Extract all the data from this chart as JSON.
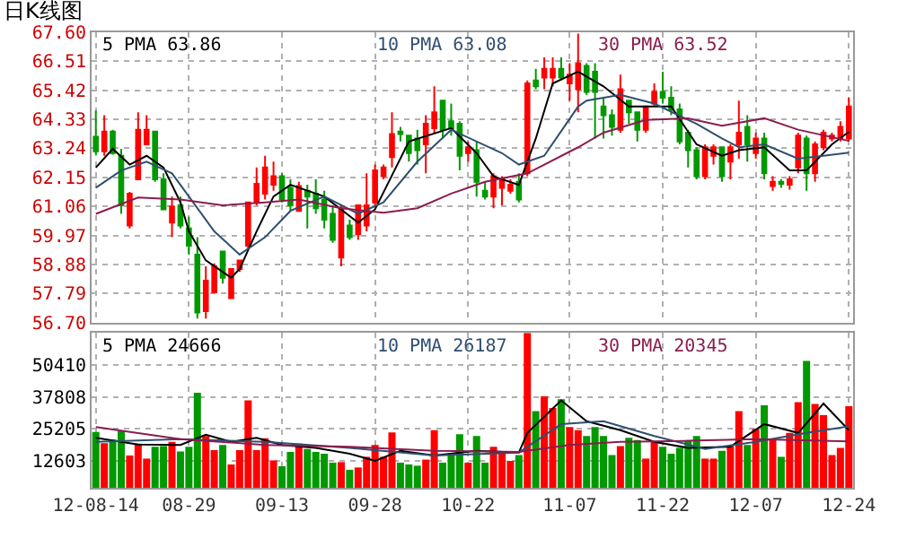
{
  "chart_data": [
    {
      "type": "candlestick",
      "title": "日K线图",
      "categories": [
        "12-08-14",
        null,
        null,
        null,
        null,
        null,
        null,
        null,
        null,
        null,
        null,
        "08-29",
        null,
        null,
        null,
        null,
        null,
        null,
        null,
        null,
        null,
        null,
        "09-13",
        null,
        null,
        null,
        null,
        null,
        null,
        null,
        null,
        null,
        null,
        "09-28",
        null,
        null,
        null,
        null,
        null,
        null,
        null,
        null,
        null,
        null,
        "10-22",
        null,
        null,
        null,
        null,
        null,
        null,
        null,
        null,
        null,
        null,
        null,
        "11-07",
        null,
        null,
        null,
        null,
        null,
        null,
        null,
        null,
        null,
        null,
        "11-22",
        null,
        null,
        null,
        null,
        null,
        null,
        null,
        null,
        null,
        null,
        "12-07",
        null,
        null,
        null,
        null,
        null,
        null,
        null,
        null,
        null,
        null,
        "12-24"
      ],
      "ohlc": [
        [
          63.68,
          64.66,
          63.0,
          63.13
        ],
        [
          63.13,
          64.48,
          62.96,
          63.87
        ],
        [
          63.87,
          63.94,
          63.0,
          63.06
        ],
        [
          62.96,
          63.22,
          60.78,
          61.1
        ],
        [
          60.34,
          61.6,
          60.23,
          61.54
        ],
        [
          62.08,
          64.59,
          62.08,
          63.94
        ],
        [
          63.39,
          64.48,
          63.39,
          63.94
        ],
        [
          63.87,
          63.87,
          61.98,
          62.08
        ],
        [
          62.08,
          62.3,
          60.95,
          60.95
        ],
        [
          60.45,
          61.43,
          59.9,
          61.06
        ],
        [
          61.1,
          61.43,
          60.23,
          60.34
        ],
        [
          60.23,
          60.67,
          59.25,
          59.58
        ],
        [
          59.25,
          59.9,
          56.85,
          57.07
        ],
        [
          57.12,
          58.81,
          56.85,
          58.27
        ],
        [
          57.83,
          58.92,
          57.83,
          58.81
        ],
        [
          59.36,
          59.36,
          58.16,
          58.38
        ],
        [
          57.61,
          58.71,
          57.61,
          58.71
        ],
        [
          58.71,
          59.03,
          58.6,
          59.03
        ],
        [
          59.58,
          61.21,
          59.47,
          61.21
        ],
        [
          61.21,
          62.52,
          61.1,
          61.91
        ],
        [
          61.54,
          62.96,
          61.32,
          62.52
        ],
        [
          61.87,
          62.74,
          61.65,
          62.19
        ],
        [
          62.19,
          62.3,
          61.21,
          61.32
        ],
        [
          61.76,
          62.08,
          60.89,
          61.1
        ],
        [
          60.89,
          61.98,
          60.89,
          61.82
        ],
        [
          61.65,
          61.87,
          60.23,
          61.43
        ],
        [
          61.54,
          62.08,
          60.78,
          60.99
        ],
        [
          61.32,
          61.65,
          60.23,
          60.56
        ],
        [
          60.78,
          61.1,
          59.69,
          59.8
        ],
        [
          59.14,
          61.1,
          58.81,
          60.99
        ],
        [
          60.34,
          60.56,
          59.8,
          59.9
        ],
        [
          60.01,
          61.1,
          59.8,
          61.1
        ],
        [
          60.34,
          62.3,
          60.12,
          61.1
        ],
        [
          61.21,
          62.63,
          61.1,
          62.41
        ],
        [
          62.19,
          62.63,
          62.08,
          62.52
        ],
        [
          62.91,
          64.59,
          62.52,
          63.78
        ],
        [
          63.87,
          64.05,
          63.5,
          63.78
        ],
        [
          63.72,
          63.72,
          62.74,
          63.06
        ],
        [
          63.61,
          63.94,
          62.63,
          63.17
        ],
        [
          63.39,
          64.48,
          62.3,
          64.16
        ],
        [
          64.0,
          65.57,
          63.83,
          64.59
        ],
        [
          65.03,
          65.03,
          63.61,
          63.94
        ],
        [
          64.26,
          64.92,
          63.72,
          64.0
        ],
        [
          64.16,
          64.26,
          62.41,
          62.96
        ],
        [
          63.06,
          63.5,
          62.74,
          63.28
        ],
        [
          63.17,
          63.5,
          61.43,
          61.98
        ],
        [
          61.65,
          61.98,
          61.32,
          61.43
        ],
        [
          61.43,
          62.3,
          60.99,
          62.19
        ],
        [
          61.76,
          62.19,
          61.1,
          62.08
        ],
        [
          61.65,
          62.08,
          61.54,
          61.87
        ],
        [
          61.98,
          62.3,
          61.21,
          61.32
        ],
        [
          62.3,
          65.79,
          62.19,
          65.68
        ],
        [
          65.79,
          66.23,
          65.46,
          65.57
        ],
        [
          65.9,
          66.66,
          65.46,
          66.23
        ],
        [
          65.9,
          66.66,
          65.57,
          66.23
        ],
        [
          66.23,
          66.66,
          65.79,
          65.9
        ],
        [
          65.68,
          66.44,
          65.03,
          66.01
        ],
        [
          65.46,
          67.55,
          64.59,
          66.44
        ],
        [
          66.34,
          66.44,
          65.25,
          65.36
        ],
        [
          66.12,
          66.44,
          63.61,
          65.36
        ],
        [
          64.81,
          65.14,
          63.61,
          64.48
        ],
        [
          64.48,
          64.7,
          63.72,
          64.05
        ],
        [
          63.94,
          66.01,
          63.83,
          65.46
        ],
        [
          65.03,
          65.03,
          64.16,
          64.59
        ],
        [
          64.59,
          64.59,
          63.5,
          63.94
        ],
        [
          63.94,
          64.81,
          63.83,
          64.81
        ],
        [
          64.92,
          65.68,
          64.81,
          65.36
        ],
        [
          65.36,
          66.12,
          64.92,
          65.14
        ],
        [
          65.14,
          65.57,
          64.48,
          64.7
        ],
        [
          64.7,
          64.92,
          63.39,
          63.5
        ],
        [
          63.83,
          63.94,
          62.52,
          63.17
        ],
        [
          63.17,
          63.28,
          62.08,
          62.19
        ],
        [
          62.19,
          63.39,
          62.08,
          63.28
        ],
        [
          62.96,
          63.39,
          62.63,
          63.28
        ],
        [
          63.28,
          63.28,
          61.98,
          62.19
        ],
        [
          62.74,
          63.39,
          62.08,
          63.28
        ],
        [
          63.39,
          65.03,
          62.85,
          63.83
        ],
        [
          64.05,
          64.48,
          62.74,
          63.39
        ],
        [
          63.06,
          63.83,
          62.85,
          63.61
        ],
        [
          63.61,
          63.83,
          62.08,
          62.3
        ],
        [
          61.82,
          62.19,
          61.65,
          61.98
        ],
        [
          61.98,
          62.08,
          61.76,
          61.91
        ],
        [
          61.87,
          62.19,
          61.69,
          62.08
        ],
        [
          62.52,
          63.83,
          62.3,
          63.72
        ],
        [
          63.61,
          63.72,
          61.65,
          62.3
        ],
        [
          62.3,
          63.5,
          61.98,
          63.39
        ],
        [
          63.28,
          63.94,
          63.17,
          63.83
        ],
        [
          63.61,
          63.83,
          63.5,
          63.72
        ],
        [
          63.61,
          64.26,
          63.5,
          64.05
        ],
        [
          63.61,
          65.14,
          63.5,
          64.81
        ]
      ],
      "colors": [
        "#009900",
        "#ff0000",
        "#009900",
        "#009900",
        "#ff0000",
        "#ff0000",
        "#ff0000",
        "#009900",
        "#009900",
        "#ff0000",
        "#009900",
        "#009900",
        "#009900",
        "#ff0000",
        "#ff0000",
        "#009900",
        "#ff0000",
        "#ff0000",
        "#ff0000",
        "#ff0000",
        "#ff0000",
        "#ff0000",
        "#009900",
        "#009900",
        "#ff0000",
        "#009900",
        "#009900",
        "#009900",
        "#009900",
        "#ff0000",
        "#009900",
        "#ff0000",
        "#ff0000",
        "#ff0000",
        "#ff0000",
        "#ff0000",
        "#009900",
        "#009900",
        "#009900",
        "#ff0000",
        "#ff0000",
        "#009900",
        "#009900",
        "#009900",
        "#ff0000",
        "#009900",
        "#009900",
        "#ff0000",
        "#ff0000",
        "#ff0000",
        "#009900",
        "#ff0000",
        "#009900",
        "#ff0000",
        "#ff0000",
        "#009900",
        "#ff0000",
        "#ff0000",
        "#009900",
        "#009900",
        "#009900",
        "#009900",
        "#ff0000",
        "#009900",
        "#009900",
        "#ff0000",
        "#ff0000",
        "#009900",
        "#009900",
        "#009900",
        "#009900",
        "#009900",
        "#ff0000",
        "#ff0000",
        "#009900",
        "#ff0000",
        "#ff0000",
        "#009900",
        "#ff0000",
        "#009900",
        "#ff0000",
        "#009900",
        "#ff0000",
        "#ff0000",
        "#009900",
        "#ff0000",
        "#ff0000",
        "#ff0000",
        "#ff0000",
        "#ff0000"
      ],
      "ylim": [
        56.7,
        67.6
      ],
      "yticks": [
        {
          "value": 56.7,
          "label": "56.70"
        },
        57.79,
        58.88,
        59.97,
        61.06,
        62.15,
        63.24,
        64.33,
        65.42,
        66.51,
        {
          "value": 67.6,
          "label": "67.60"
        }
      ],
      "grid": true,
      "tick_labels": "y",
      "series": [
        {
          "type": "line",
          "name": "5 PMA 63.86",
          "color": "#000000",
          "values": [
            62.52,
            null,
            63.22,
            null,
            62.63,
            null,
            62.96,
            null,
            62.52,
            null,
            61.21,
            60.12,
            null,
            59.03,
            null,
            null,
            58.38,
            58.71,
            null,
            60.12,
            null,
            61.43,
            null,
            61.87,
            null,
            null,
            null,
            61.43,
            null,
            null,
            null,
            60.45,
            null,
            60.95,
            null,
            null,
            null,
            63.5,
            null,
            null,
            null,
            null,
            64.0,
            null,
            null,
            63.06,
            null,
            62.19,
            null,
            null,
            61.87,
            null,
            63.61,
            null,
            65.68,
            null,
            null,
            66.12,
            null,
            null,
            65.57,
            null,
            null,
            64.81,
            null,
            null,
            64.81,
            null,
            64.81,
            null,
            null,
            63.39,
            null,
            null,
            62.96,
            null,
            63.17,
            null,
            null,
            63.28,
            null,
            null,
            62.41,
            null,
            62.41,
            null,
            null,
            63.39,
            null,
            63.86
          ]
        },
        {
          "type": "line",
          "name": "10 PMA 63.08",
          "color": "#2f4f6f",
          "values": [
            61.76,
            null,
            null,
            62.41,
            null,
            null,
            62.74,
            null,
            null,
            62.3,
            null,
            61.43,
            null,
            null,
            60.12,
            null,
            null,
            59.25,
            null,
            null,
            59.9,
            null,
            null,
            60.89,
            null,
            null,
            null,
            61.43,
            null,
            null,
            null,
            60.78,
            null,
            null,
            61.21,
            null,
            null,
            null,
            62.74,
            null,
            null,
            null,
            63.94,
            null,
            null,
            null,
            null,
            null,
            63.06,
            null,
            62.63,
            null,
            null,
            62.96,
            null,
            null,
            null,
            64.81,
            65.03,
            null,
            null,
            null,
            65.25,
            null,
            null,
            null,
            64.92,
            null,
            null,
            null,
            null,
            64.16,
            null,
            null,
            63.61,
            null,
            63.28,
            null,
            null,
            63.39,
            null,
            null,
            null,
            62.85,
            null,
            null,
            62.96,
            null,
            null,
            63.08
          ]
        },
        {
          "type": "line",
          "name": "30 PMA 63.52",
          "color": "#8b1c4f",
          "values": [
            60.78,
            null,
            null,
            null,
            null,
            61.39,
            null,
            null,
            null,
            null,
            61.32,
            null,
            null,
            null,
            null,
            61.1,
            null,
            null,
            null,
            null,
            61.21,
            null,
            null,
            null,
            61.32,
            null,
            null,
            null,
            null,
            60.99,
            null,
            null,
            null,
            null,
            60.82,
            null,
            null,
            null,
            60.99,
            null,
            null,
            null,
            61.54,
            null,
            null,
            null,
            61.98,
            null,
            null,
            null,
            null,
            62.3,
            null,
            null,
            null,
            null,
            null,
            63.28,
            null,
            null,
            63.83,
            null,
            null,
            null,
            null,
            64.31,
            null,
            null,
            null,
            null,
            64.37,
            null,
            null,
            null,
            64.09,
            null,
            null,
            null,
            null,
            64.37,
            null,
            null,
            null,
            63.94,
            null,
            null,
            null,
            null,
            null,
            63.52
          ]
        }
      ]
    },
    {
      "type": "bar",
      "categories": [
        "12-08-14",
        null,
        null,
        null,
        null,
        null,
        null,
        null,
        null,
        null,
        null,
        "08-29",
        null,
        null,
        null,
        null,
        null,
        null,
        null,
        null,
        null,
        null,
        "09-13",
        null,
        null,
        null,
        null,
        null,
        null,
        null,
        null,
        null,
        null,
        "09-28",
        null,
        null,
        null,
        null,
        null,
        null,
        null,
        null,
        null,
        null,
        "10-22",
        null,
        null,
        null,
        null,
        null,
        null,
        null,
        null,
        null,
        null,
        null,
        "11-07",
        null,
        null,
        null,
        null,
        null,
        null,
        null,
        null,
        null,
        null,
        "11-22",
        null,
        null,
        null,
        null,
        null,
        null,
        null,
        null,
        null,
        null,
        "12-07",
        null,
        null,
        null,
        null,
        null,
        null,
        null,
        null,
        null,
        null,
        "12-24"
      ],
      "ylim": [
        2000,
        63000
      ],
      "yticks": [
        12603,
        25205,
        37808,
        50410
      ],
      "grid": true,
      "series": [
        {
          "type": "bar",
          "values": [
            24000,
            19600,
            21000,
            24300,
            14700,
            19400,
            13500,
            18200,
            18400,
            20100,
            16300,
            18200,
            39400,
            22400,
            16800,
            18900,
            11200,
            16800,
            36400,
            16800,
            21500,
            12800,
            10500,
            16100,
            19400,
            17300,
            16100,
            15400,
            11900,
            12100,
            9100,
            10000,
            14200,
            18900,
            14200,
            23800,
            11900,
            11200,
            10700,
            13100,
            24700,
            11900,
            14900,
            23100,
            11900,
            22400,
            11900,
            18200,
            15900,
            12600,
            14900,
            63000,
            32200,
            38000,
            33400,
            36900,
            25900,
            24700,
            22400,
            25900,
            22400,
            14900,
            18400,
            21700,
            20800,
            13500,
            20100,
            18200,
            15400,
            17700,
            20500,
            22400,
            13500,
            13500,
            16600,
            18400,
            32200,
            18900,
            25200,
            34500,
            21200,
            14200,
            23600,
            35700,
            52000,
            35000,
            30600,
            14900,
            17700,
            34100
          ],
          "colors": [
            "#009900",
            "#ff0000",
            "#009900",
            "#009900",
            "#ff0000",
            "#ff0000",
            "#ff0000",
            "#009900",
            "#009900",
            "#ff0000",
            "#009900",
            "#009900",
            "#009900",
            "#ff0000",
            "#ff0000",
            "#009900",
            "#ff0000",
            "#ff0000",
            "#ff0000",
            "#ff0000",
            "#ff0000",
            "#ff0000",
            "#009900",
            "#009900",
            "#ff0000",
            "#009900",
            "#009900",
            "#009900",
            "#009900",
            "#ff0000",
            "#009900",
            "#ff0000",
            "#ff0000",
            "#ff0000",
            "#ff0000",
            "#ff0000",
            "#009900",
            "#009900",
            "#009900",
            "#ff0000",
            "#ff0000",
            "#009900",
            "#009900",
            "#009900",
            "#ff0000",
            "#009900",
            "#009900",
            "#ff0000",
            "#ff0000",
            "#ff0000",
            "#009900",
            "#ff0000",
            "#009900",
            "#ff0000",
            "#ff0000",
            "#009900",
            "#ff0000",
            "#ff0000",
            "#009900",
            "#009900",
            "#009900",
            "#009900",
            "#ff0000",
            "#009900",
            "#009900",
            "#ff0000",
            "#ff0000",
            "#009900",
            "#009900",
            "#009900",
            "#009900",
            "#009900",
            "#ff0000",
            "#ff0000",
            "#009900",
            "#ff0000",
            "#ff0000",
            "#009900",
            "#ff0000",
            "#009900",
            "#ff0000",
            "#009900",
            "#ff0000",
            "#ff0000",
            "#009900",
            "#ff0000",
            "#ff0000",
            "#ff0000",
            "#ff0000",
            "#ff0000"
          ]
        },
        {
          "type": "line",
          "name": "5 PMA 24666",
          "color": "#000000",
          "values": [
            21700,
            null,
            null,
            null,
            null,
            19000,
            null,
            null,
            null,
            null,
            18900,
            null,
            null,
            22900,
            null,
            null,
            20100,
            null,
            null,
            21700,
            null,
            null,
            18900,
            null,
            null,
            null,
            17700,
            null,
            null,
            null,
            15400,
            null,
            null,
            12600,
            null,
            null,
            16600,
            null,
            null,
            null,
            14700,
            null,
            null,
            null,
            null,
            16600,
            null,
            null,
            null,
            null,
            15900,
            23600,
            null,
            null,
            null,
            36400,
            null,
            null,
            28200,
            null,
            null,
            null,
            24700,
            null,
            null,
            null,
            20100,
            null,
            null,
            null,
            17700,
            null,
            null,
            null,
            null,
            18200,
            null,
            null,
            null,
            27100,
            null,
            null,
            null,
            23600,
            null,
            null,
            35200,
            null,
            null,
            24700
          ]
        },
        {
          "type": "line",
          "name": "10 PMA 26187",
          "color": "#2f4f6f",
          "values": [
            20100,
            null,
            null,
            null,
            null,
            null,
            null,
            null,
            null,
            null,
            21200,
            null,
            null,
            null,
            null,
            null,
            null,
            null,
            null,
            null,
            20100,
            null,
            null,
            null,
            null,
            null,
            null,
            null,
            null,
            null,
            17700,
            null,
            null,
            null,
            null,
            null,
            null,
            null,
            null,
            null,
            14700,
            null,
            null,
            null,
            null,
            null,
            null,
            null,
            null,
            null,
            15900,
            null,
            null,
            null,
            null,
            27100,
            null,
            null,
            null,
            null,
            28200,
            null,
            null,
            null,
            null,
            null,
            22400,
            null,
            null,
            null,
            null,
            null,
            17300,
            null,
            null,
            null,
            null,
            null,
            20100,
            null,
            null,
            null,
            null,
            null,
            23600,
            null,
            null,
            null,
            null,
            26200
          ]
        },
        {
          "type": "line",
          "name": "30 PMA 20345",
          "color": "#8b1c4f",
          "values": [
            25900,
            null,
            null,
            null,
            null,
            null,
            null,
            null,
            null,
            null,
            21200,
            null,
            null,
            null,
            null,
            null,
            null,
            null,
            null,
            null,
            18900,
            null,
            null,
            null,
            null,
            null,
            null,
            null,
            null,
            null,
            18200,
            null,
            null,
            null,
            null,
            null,
            null,
            null,
            null,
            null,
            16600,
            null,
            null,
            null,
            null,
            null,
            null,
            null,
            null,
            null,
            16100,
            null,
            null,
            null,
            null,
            null,
            18900,
            null,
            null,
            null,
            null,
            null,
            20100,
            null,
            null,
            null,
            null,
            null,
            null,
            null,
            20500,
            null,
            null,
            null,
            null,
            null,
            null,
            null,
            21200,
            null,
            null,
            null,
            null,
            null,
            null,
            null,
            null,
            null,
            null,
            20300
          ]
        }
      ]
    }
  ]
}
